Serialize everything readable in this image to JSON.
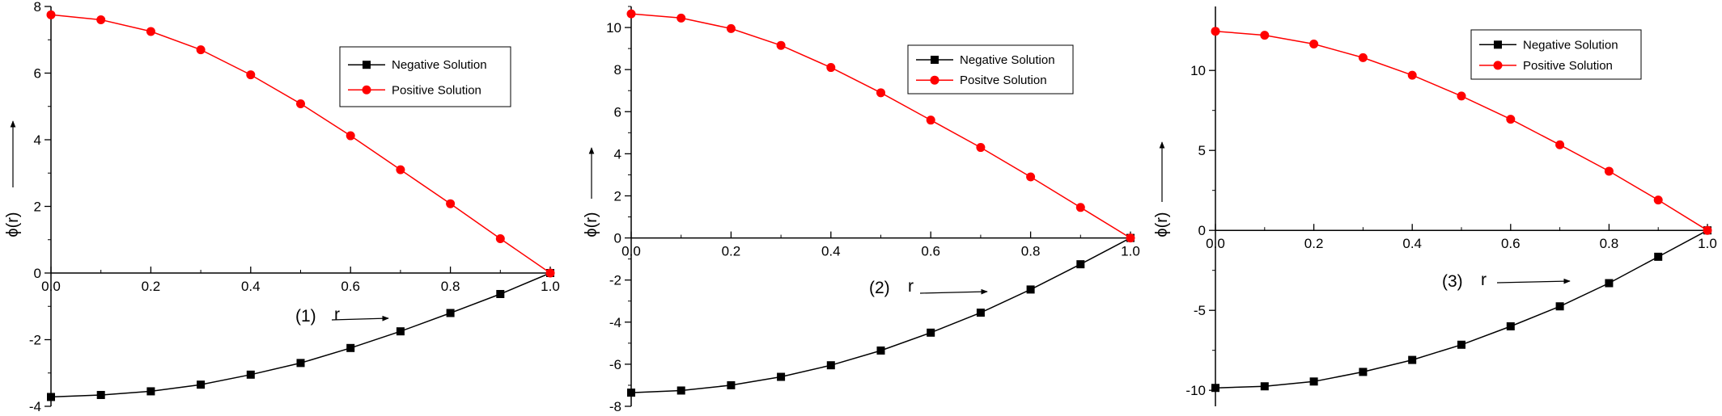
{
  "colors": {
    "negative": "#000000",
    "positive": "#ff0000",
    "axis": "#000000",
    "background": "#ffffff"
  },
  "chart_data": [
    {
      "type": "line",
      "panel_label": "(1)",
      "xlabel": "r",
      "ylabel": "ϕ(r)",
      "xlim": [
        0,
        1
      ],
      "ylim": [
        -4,
        8
      ],
      "x_ticks": [
        "0.0",
        "0.2",
        "0.4",
        "0.6",
        "0.8",
        "1.0"
      ],
      "y_ticks": [
        "-4",
        "-2",
        "0",
        "2",
        "4",
        "6",
        "8"
      ],
      "legend_position": "top-right",
      "x": [
        0,
        0.1,
        0.2,
        0.3,
        0.4,
        0.5,
        0.6,
        0.7,
        0.8,
        0.9,
        1.0
      ],
      "series": [
        {
          "name": "Negative Solution",
          "marker": "square",
          "values": [
            -3.72,
            -3.66,
            -3.55,
            -3.35,
            -3.05,
            -2.7,
            -2.25,
            -1.75,
            -1.2,
            -0.63,
            0
          ]
        },
        {
          "name": "Positive Solution",
          "marker": "circle",
          "values": [
            7.75,
            7.6,
            7.25,
            6.7,
            5.95,
            5.08,
            4.12,
            3.1,
            2.08,
            1.03,
            0
          ]
        }
      ]
    },
    {
      "type": "line",
      "panel_label": "(2)",
      "xlabel": "r",
      "ylabel": "ϕ(r)",
      "xlim": [
        0,
        1
      ],
      "ylim": [
        -8,
        11
      ],
      "x_ticks": [
        "0.0",
        "0.2",
        "0.4",
        "0.6",
        "0.8",
        "1.0"
      ],
      "y_ticks": [
        "-8",
        "-6",
        "-4",
        "-2",
        "0",
        "2",
        "4",
        "6",
        "8",
        "10"
      ],
      "legend_position": "top-right",
      "x": [
        0,
        0.1,
        0.2,
        0.3,
        0.4,
        0.5,
        0.6,
        0.7,
        0.8,
        0.9,
        1.0
      ],
      "series": [
        {
          "name": "Negative Solution",
          "marker": "square",
          "values": [
            -7.35,
            -7.25,
            -7.0,
            -6.6,
            -6.05,
            -5.35,
            -4.5,
            -3.55,
            -2.45,
            -1.25,
            0
          ]
        },
        {
          "name": "Positve Solution",
          "marker": "circle",
          "values": [
            10.65,
            10.45,
            9.95,
            9.15,
            8.1,
            6.9,
            5.6,
            4.3,
            2.9,
            1.45,
            0
          ]
        }
      ]
    },
    {
      "type": "line",
      "panel_label": "(3)",
      "xlabel": "r",
      "ylabel": "ϕ(r)",
      "xlim": [
        0,
        1
      ],
      "ylim": [
        -11,
        14
      ],
      "x_ticks": [
        "0.0",
        "0.2",
        "0.4",
        "0.6",
        "0.8",
        "1.0"
      ],
      "y_ticks": [
        "-10",
        "-5",
        "0",
        "5",
        "10"
      ],
      "legend_position": "top-right",
      "x": [
        0,
        0.1,
        0.2,
        0.3,
        0.4,
        0.5,
        0.6,
        0.7,
        0.8,
        0.9,
        1.0
      ],
      "series": [
        {
          "name": "Negative Solution",
          "marker": "square",
          "values": [
            -9.85,
            -9.75,
            -9.45,
            -8.85,
            -8.1,
            -7.15,
            -6.0,
            -4.75,
            -3.3,
            -1.65,
            0
          ]
        },
        {
          "name": "Positive Solution",
          "marker": "circle",
          "values": [
            12.45,
            12.2,
            11.65,
            10.8,
            9.7,
            8.4,
            6.95,
            5.35,
            3.7,
            1.9,
            0
          ]
        }
      ]
    }
  ]
}
